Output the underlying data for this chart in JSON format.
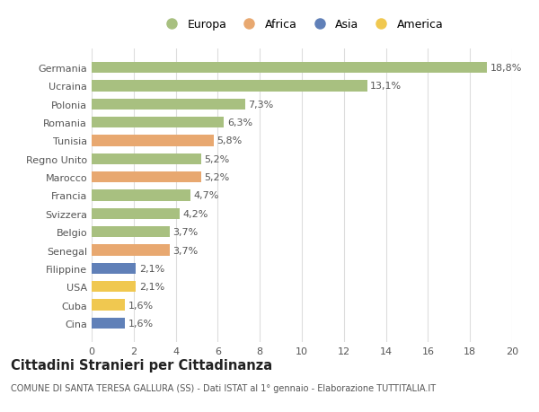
{
  "countries": [
    "Germania",
    "Ucraina",
    "Polonia",
    "Romania",
    "Tunisia",
    "Regno Unito",
    "Marocco",
    "Francia",
    "Svizzera",
    "Belgio",
    "Senegal",
    "Filippine",
    "USA",
    "Cuba",
    "Cina"
  ],
  "values": [
    18.8,
    13.1,
    7.3,
    6.3,
    5.8,
    5.2,
    5.2,
    4.7,
    4.2,
    3.7,
    3.7,
    2.1,
    2.1,
    1.6,
    1.6
  ],
  "labels": [
    "18,8%",
    "13,1%",
    "7,3%",
    "6,3%",
    "5,8%",
    "5,2%",
    "5,2%",
    "4,7%",
    "4,2%",
    "3,7%",
    "3,7%",
    "2,1%",
    "2,1%",
    "1,6%",
    "1,6%"
  ],
  "continent": [
    "Europa",
    "Europa",
    "Europa",
    "Europa",
    "Africa",
    "Europa",
    "Africa",
    "Europa",
    "Europa",
    "Europa",
    "Africa",
    "Asia",
    "America",
    "America",
    "Asia"
  ],
  "colors": {
    "Europa": "#a8c080",
    "Africa": "#e8a870",
    "Asia": "#6080b8",
    "America": "#f0c850"
  },
  "xlim": [
    0,
    20
  ],
  "xticks": [
    0,
    2,
    4,
    6,
    8,
    10,
    12,
    14,
    16,
    18,
    20
  ],
  "title": "Cittadini Stranieri per Cittadinanza",
  "subtitle": "COMUNE DI SANTA TERESA GALLURA (SS) - Dati ISTAT al 1° gennaio - Elaborazione TUTTITALIA.IT",
  "background_color": "#ffffff",
  "grid_color": "#dddddd",
  "bar_height": 0.6,
  "label_fontsize": 8,
  "tick_fontsize": 8,
  "title_fontsize": 10.5,
  "subtitle_fontsize": 7,
  "legend_entries": [
    "Europa",
    "Africa",
    "Asia",
    "America"
  ]
}
